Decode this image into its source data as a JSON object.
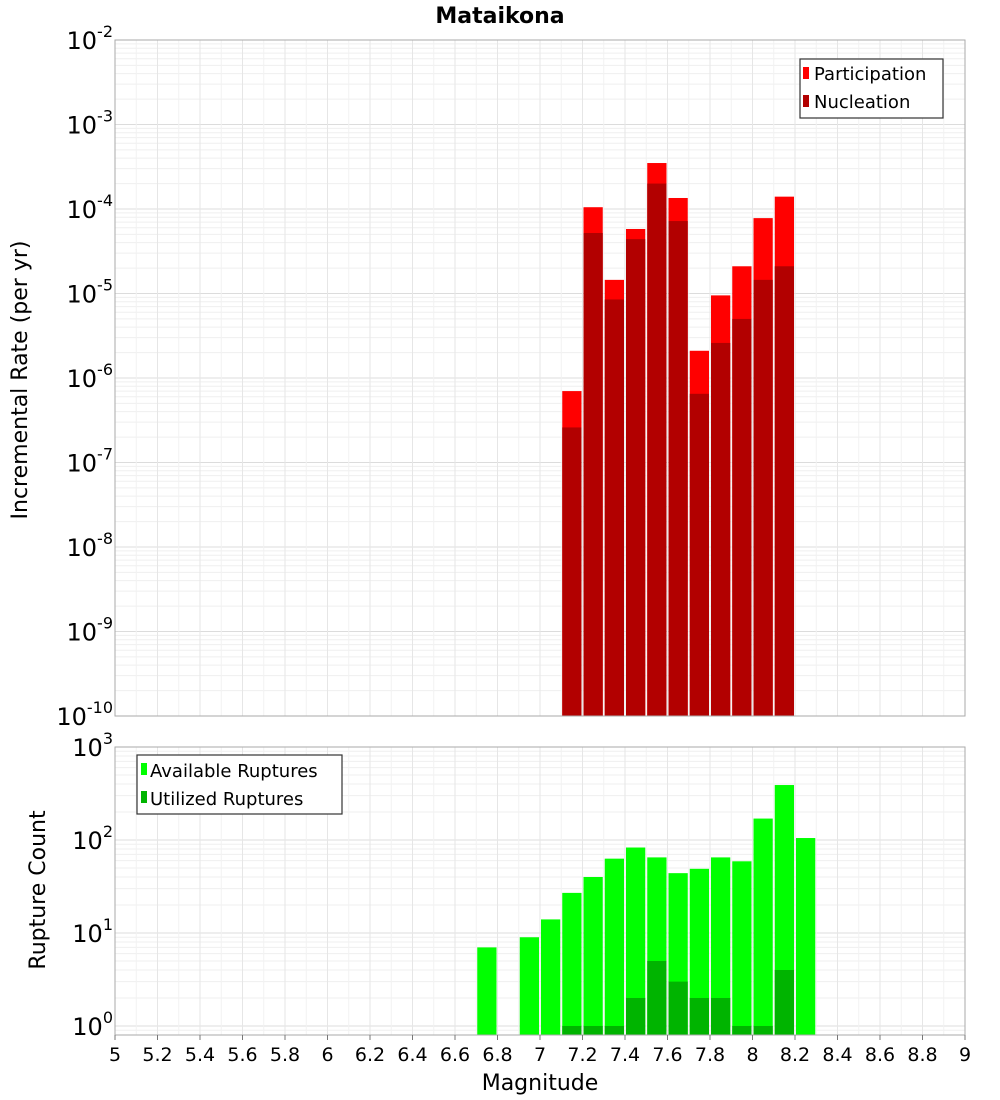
{
  "title": "Mataikona",
  "colors": {
    "participation": "#ff0000",
    "nucleation": "#b20000",
    "available": "#00ff00",
    "utilized": "#00b400",
    "grid": "#e6e6e6",
    "frame": "#aaaaaa"
  },
  "chart_data": [
    {
      "type": "bar",
      "title": "Mataikona",
      "xlabel": "",
      "ylabel": "Incremental Rate (per yr)",
      "yscale": "log",
      "ylim": [
        1e-10,
        0.01
      ],
      "xlim": [
        5,
        9
      ],
      "bin_width": 0.1,
      "y_tick_bases": [
        "10",
        "10",
        "10",
        "10",
        "10",
        "10",
        "10",
        "10",
        "10"
      ],
      "y_tick_exponents": [
        "-2",
        "-3",
        "-4",
        "-5",
        "-6",
        "-7",
        "-8",
        "-9",
        "-10"
      ],
      "legend": {
        "position": "top-right",
        "entries": [
          "Participation",
          "Nucleation"
        ]
      },
      "x": [
        7.15,
        7.25,
        7.35,
        7.45,
        7.55,
        7.65,
        7.75,
        7.85,
        7.95,
        8.05,
        8.15
      ],
      "series": [
        {
          "name": "Participation",
          "values": [
            7e-07,
            0.000105,
            1.45e-05,
            5.8e-05,
            0.00035,
            0.000135,
            2.1e-06,
            9.5e-06,
            2.1e-05,
            7.8e-05,
            0.00014
          ]
        },
        {
          "name": "Nucleation",
          "values": [
            2.6e-07,
            5.2e-05,
            8.5e-06,
            4.4e-05,
            0.0002,
            7.2e-05,
            6.5e-07,
            2.6e-06,
            5e-06,
            1.45e-05,
            2.1e-05
          ]
        }
      ]
    },
    {
      "type": "bar",
      "xlabel": "Magnitude",
      "ylabel": "Rupture Count",
      "yscale": "log",
      "ylim": [
        0.8,
        1000
      ],
      "xlim": [
        5,
        9
      ],
      "bin_width": 0.1,
      "y_tick_bases": [
        "10",
        "10",
        "10",
        "10"
      ],
      "y_tick_exponents": [
        "3",
        "2",
        "1",
        "0"
      ],
      "x_tick_labels": [
        "5",
        "5.2",
        "5.4",
        "5.6",
        "5.8",
        "6",
        "6.2",
        "6.4",
        "6.6",
        "6.8",
        "7",
        "7.2",
        "7.4",
        "7.6",
        "7.8",
        "8",
        "8.2",
        "8.4",
        "8.6",
        "8.8",
        "9"
      ],
      "legend": {
        "position": "top-left",
        "entries": [
          "Available Ruptures",
          "Utilized Ruptures"
        ]
      },
      "x": [
        6.75,
        6.95,
        7.05,
        7.15,
        7.25,
        7.35,
        7.45,
        7.55,
        7.65,
        7.75,
        7.85,
        7.95,
        8.05,
        8.15,
        8.25
      ],
      "series": [
        {
          "name": "Available Ruptures",
          "values": [
            7,
            9,
            14,
            27,
            40,
            63,
            83,
            65,
            44,
            49,
            65,
            59,
            170,
            390,
            105
          ]
        },
        {
          "name": "Utilized Ruptures",
          "values": [
            0,
            0,
            0,
            1,
            1,
            1,
            2,
            5,
            3,
            2,
            2,
            1,
            1,
            4,
            0
          ]
        }
      ]
    }
  ]
}
